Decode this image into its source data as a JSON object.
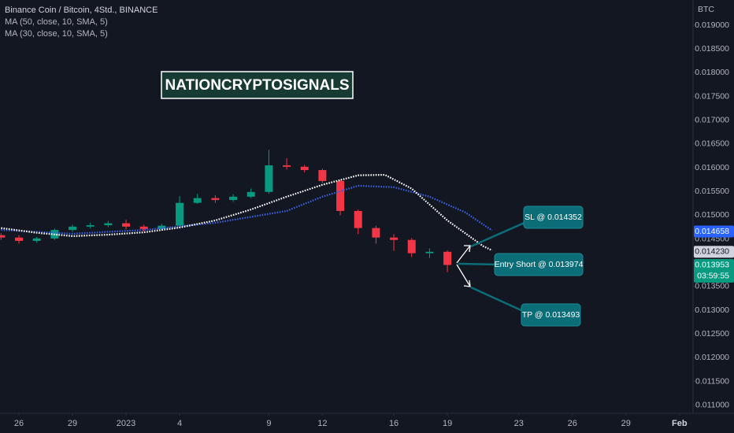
{
  "chart_data": {
    "type": "candlestick",
    "title": "Binance Coin / Bitcoin, 4Std., BINANCE",
    "currency": "BTC",
    "watermark": "NATIONCRYPTOSIGNALS",
    "x": [
      -1,
      0,
      1,
      2,
      3,
      4,
      5,
      6,
      7,
      8,
      9,
      10,
      11,
      12,
      13,
      14,
      15,
      16,
      17,
      18,
      19,
      20,
      21,
      22,
      23,
      24
    ],
    "open": [
      0.01458,
      0.01453,
      0.01446,
      0.01451,
      0.01469,
      0.01476,
      0.01479,
      0.01483,
      0.01476,
      0.01471,
      0.01478,
      0.01526,
      0.01536,
      0.01532,
      0.01539,
      0.01549,
      0.01605,
      0.01602,
      0.01595,
      0.01572,
      0.01509,
      0.01473,
      0.01453,
      0.01448,
      0.0142,
      0.01423
    ],
    "high": [
      0.01462,
      0.01458,
      0.01455,
      0.01472,
      0.0148,
      0.01484,
      0.01488,
      0.0149,
      0.0148,
      0.01482,
      0.0154,
      0.01545,
      0.01542,
      0.01544,
      0.01556,
      0.01638,
      0.0162,
      0.01606,
      0.01598,
      0.01575,
      0.01512,
      0.01478,
      0.0146,
      0.01452,
      0.0143,
      0.01426
    ],
    "low": [
      0.01448,
      0.0144,
      0.01442,
      0.01448,
      0.01465,
      0.01472,
      0.01475,
      0.0147,
      0.01466,
      0.01468,
      0.01476,
      0.01524,
      0.01526,
      0.01528,
      0.01536,
      0.01545,
      0.01596,
      0.0159,
      0.01568,
      0.015,
      0.0146,
      0.0144,
      0.01425,
      0.01412,
      0.0141,
      0.0138
    ],
    "close": [
      0.01453,
      0.01446,
      0.01451,
      0.01469,
      0.01476,
      0.01479,
      0.01483,
      0.01476,
      0.01471,
      0.01478,
      0.01526,
      0.01536,
      0.01532,
      0.01539,
      0.01549,
      0.01605,
      0.01602,
      0.01595,
      0.01572,
      0.01509,
      0.01473,
      0.01453,
      0.01448,
      0.0142,
      0.01423,
      0.013953
    ],
    "up_color": "#089981",
    "down_color": "#f23645",
    "series": [
      {
        "name": "MA (50, close, 10, SMA, 5)",
        "color": "#3d5fe0",
        "x": [
          -1,
          3,
          7,
          11,
          15,
          17,
          19,
          21,
          23,
          25,
          26.5
        ],
        "values": [
          0.01469,
          0.01461,
          0.01469,
          0.01484,
          0.01509,
          0.01539,
          0.01562,
          0.01559,
          0.01539,
          0.01506,
          0.01468
        ]
      },
      {
        "name": "MA (30, close, 10, SMA, 5)",
        "color": "#ffffff",
        "x": [
          -1,
          1,
          3,
          5,
          7,
          9,
          11,
          13,
          15,
          17,
          19,
          20.5,
          22,
          24,
          26,
          26.5
        ],
        "values": [
          0.01473,
          0.01463,
          0.01456,
          0.01459,
          0.01464,
          0.01474,
          0.01489,
          0.01512,
          0.01539,
          0.01564,
          0.01584,
          0.01585,
          0.01556,
          0.01489,
          0.01435,
          0.01426
        ]
      }
    ],
    "xlim": [
      -1.06,
      37.76
    ],
    "ylim": [
      0.01083,
      0.01953
    ],
    "xticks": [
      {
        "value": 0,
        "label": "26"
      },
      {
        "value": 3,
        "label": "29"
      },
      {
        "value": 6,
        "label": "2023"
      },
      {
        "value": 9,
        "label": "4"
      },
      {
        "value": 14,
        "label": "9"
      },
      {
        "value": 17,
        "label": "12"
      },
      {
        "value": 21,
        "label": "16"
      },
      {
        "value": 24,
        "label": "19"
      },
      {
        "value": 28,
        "label": "23"
      },
      {
        "value": 31,
        "label": "26"
      },
      {
        "value": 34,
        "label": "29"
      },
      {
        "value": 37,
        "label": "Feb"
      }
    ],
    "yticks": [
      {
        "value": 0.011,
        "label": "0.011000"
      },
      {
        "value": 0.0115,
        "label": "0.011500"
      },
      {
        "value": 0.012,
        "label": "0.012000"
      },
      {
        "value": 0.0125,
        "label": "0.012500"
      },
      {
        "value": 0.013,
        "label": "0.013000"
      },
      {
        "value": 0.0135,
        "label": "0.013500"
      },
      {
        "value": 0.014,
        "label": "0.014000"
      },
      {
        "value": 0.0145,
        "label": "0.014500"
      },
      {
        "value": 0.015,
        "label": "0.015000"
      },
      {
        "value": 0.0155,
        "label": "0.015500"
      },
      {
        "value": 0.016,
        "label": "0.016000"
      },
      {
        "value": 0.0165,
        "label": "0.016500"
      },
      {
        "value": 0.017,
        "label": "0.017000"
      },
      {
        "value": 0.0175,
        "label": "0.017500"
      },
      {
        "value": 0.018,
        "label": "0.018000"
      },
      {
        "value": 0.0185,
        "label": "0.018500"
      },
      {
        "value": 0.019,
        "label": "0.019000"
      }
    ],
    "grid": false,
    "price_labels": [
      {
        "value": 0.014658,
        "label": "0.014658",
        "color": "#2962ff",
        "text_color": "#ffffff"
      },
      {
        "value": 0.01423,
        "label": "0.014230",
        "color": "#d1d4dc",
        "text_color": "#131722"
      },
      {
        "value": 0.013953,
        "label": "0.013953",
        "color": "#089981",
        "text_color": "#ffffff"
      }
    ],
    "countdown": "03:59:55",
    "annotations": [
      "SL @ 0.014352",
      "Entry Short @ 0.013974",
      "TP @ 0.013493"
    ]
  }
}
